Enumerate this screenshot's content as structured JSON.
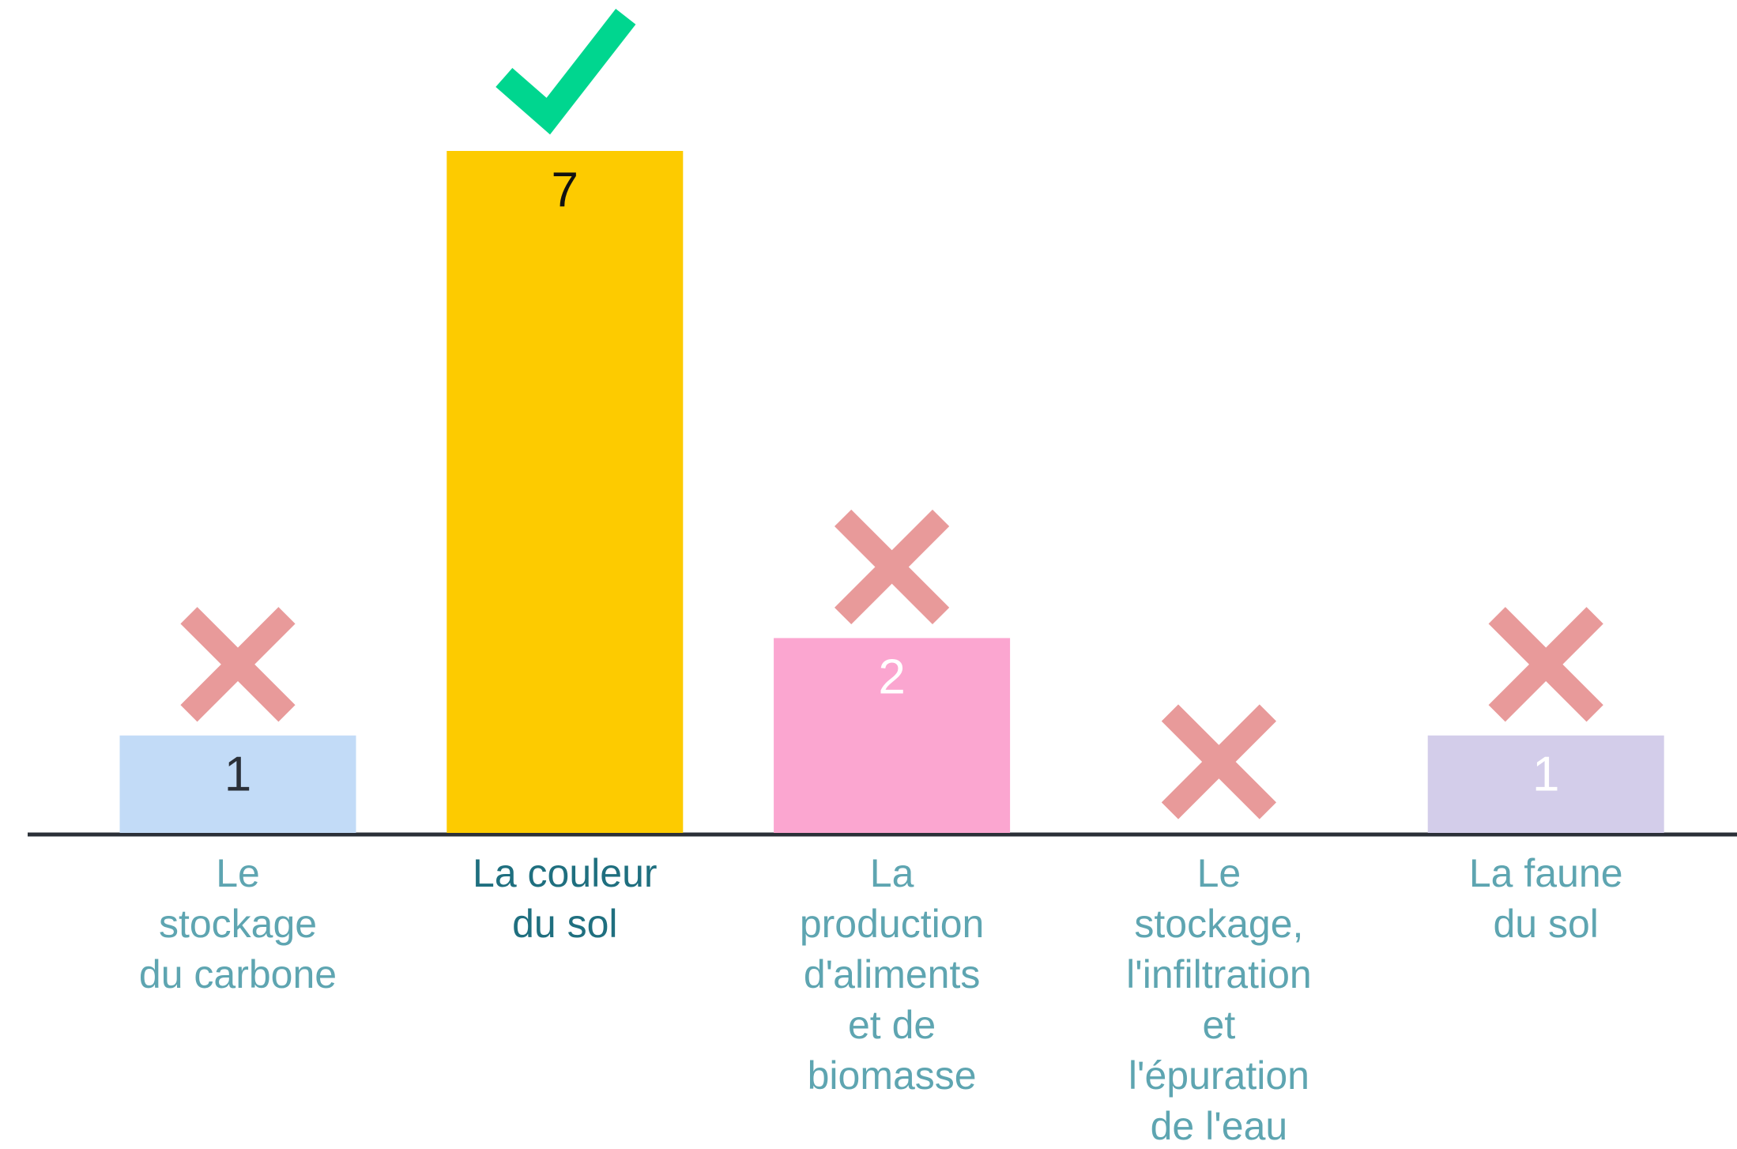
{
  "chart_data": {
    "type": "bar",
    "categories": [
      [
        "Le",
        "stockage",
        "du carbone"
      ],
      [
        "La couleur",
        "du sol"
      ],
      [
        "La",
        "production",
        "d'aliments",
        "et de",
        "biomasse"
      ],
      [
        "Le",
        "stockage,",
        "l'infiltration",
        "et",
        "l'épuration",
        "de l'eau"
      ],
      [
        "La faune",
        "du sol"
      ]
    ],
    "values": [
      1,
      7,
      2,
      0,
      1
    ],
    "value_labels": [
      "1",
      "7",
      "2",
      null,
      "1"
    ],
    "colors": [
      "#c2dbf7",
      "#fdcb00",
      "#fba6d0",
      "#d0d0d0",
      "#d3cdea"
    ],
    "value_label_colors": [
      "#2b3038",
      "#111111",
      "#ffffff",
      null,
      "#ffffff"
    ],
    "correct": [
      false,
      true,
      false,
      false,
      false
    ],
    "label_color": "#5ea5b1",
    "correct_label_color": "#1f6f7f",
    "check_color": "#00d68f",
    "cross_color": "#e89a9a"
  }
}
